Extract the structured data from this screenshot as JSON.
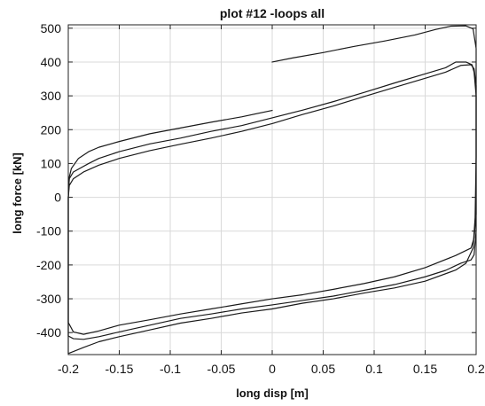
{
  "chart_data": {
    "type": "line",
    "title": "plot #12 -loops all",
    "xlabel": "long disp [m]",
    "ylabel": "long force [kN]",
    "xlim": [
      -0.2,
      0.2
    ],
    "ylim": [
      -465,
      510
    ],
    "x_ticks": [
      -0.2,
      -0.15,
      -0.1,
      -0.05,
      0,
      0.05,
      0.1,
      0.15,
      0.2
    ],
    "x_tick_labels": [
      "-0.2",
      "-0.15",
      "-0.1",
      "-0.05",
      "0",
      "0.05",
      "0.1",
      "0.15",
      "0.2"
    ],
    "y_ticks": [
      -400,
      -300,
      -200,
      -100,
      0,
      100,
      200,
      300,
      400,
      500
    ],
    "y_tick_labels": [
      "-400",
      "-300",
      "-200",
      "-100",
      "0",
      "100",
      "200",
      "300",
      "400",
      "500"
    ],
    "grid": true,
    "line_color": "#1a1a1a",
    "series": [
      {
        "points": [
          [
            0,
            400
          ],
          [
            0.02,
            412
          ],
          [
            0.05,
            428
          ],
          [
            0.08,
            446
          ],
          [
            0.11,
            462
          ],
          [
            0.14,
            480
          ],
          [
            0.16,
            496
          ],
          [
            0.175,
            506
          ],
          [
            0.19,
            507
          ],
          [
            0.197,
            498
          ],
          [
            0.2,
            440
          ],
          [
            0.2,
            120
          ],
          [
            0.199,
            -60
          ],
          [
            0.197,
            -150
          ],
          [
            0.19,
            -195
          ],
          [
            0.18,
            -215
          ],
          [
            0.15,
            -248
          ],
          [
            0.12,
            -268
          ],
          [
            0.09,
            -283
          ],
          [
            0.06,
            -300
          ],
          [
            0.03,
            -313
          ],
          [
            0,
            -330
          ],
          [
            -0.03,
            -342
          ],
          [
            -0.06,
            -358
          ],
          [
            -0.09,
            -372
          ],
          [
            -0.12,
            -392
          ],
          [
            -0.15,
            -412
          ],
          [
            -0.17,
            -427
          ],
          [
            -0.185,
            -444
          ],
          [
            -0.195,
            -456
          ],
          [
            -0.2,
            -462
          ],
          [
            -0.2,
            -440
          ],
          [
            -0.2,
            -200
          ],
          [
            -0.2,
            0
          ],
          [
            -0.199,
            60
          ],
          [
            -0.197,
            85
          ],
          [
            -0.19,
            115
          ],
          [
            -0.18,
            135
          ],
          [
            -0.17,
            148
          ],
          [
            -0.15,
            165
          ],
          [
            -0.12,
            188
          ],
          [
            -0.09,
            205
          ],
          [
            -0.06,
            222
          ],
          [
            -0.03,
            238
          ],
          [
            0,
            257
          ]
        ]
      },
      {
        "points": [
          [
            -0.2,
            0
          ],
          [
            -0.199,
            55
          ],
          [
            -0.195,
            75
          ],
          [
            -0.18,
            100
          ],
          [
            -0.17,
            115
          ],
          [
            -0.15,
            135
          ],
          [
            -0.12,
            158
          ],
          [
            -0.09,
            175
          ],
          [
            -0.06,
            195
          ],
          [
            -0.03,
            212
          ],
          [
            0,
            235
          ],
          [
            0.03,
            258
          ],
          [
            0.06,
            283
          ],
          [
            0.09,
            310
          ],
          [
            0.12,
            338
          ],
          [
            0.15,
            365
          ],
          [
            0.17,
            383
          ],
          [
            0.18,
            400
          ],
          [
            0.19,
            400
          ],
          [
            0.196,
            392
          ],
          [
            0.198,
            370
          ],
          [
            0.2,
            300
          ],
          [
            0.2,
            0
          ],
          [
            0.2,
            -100
          ],
          [
            0.198,
            -170
          ],
          [
            0.195,
            -185
          ],
          [
            0.185,
            -195
          ],
          [
            0.17,
            -216
          ],
          [
            0.15,
            -235
          ],
          [
            0.12,
            -258
          ],
          [
            0.09,
            -275
          ],
          [
            0.06,
            -292
          ],
          [
            0.03,
            -305
          ],
          [
            0,
            -318
          ],
          [
            -0.03,
            -330
          ],
          [
            -0.06,
            -345
          ],
          [
            -0.09,
            -358
          ],
          [
            -0.12,
            -378
          ],
          [
            -0.15,
            -398
          ],
          [
            -0.17,
            -412
          ],
          [
            -0.185,
            -420
          ],
          [
            -0.195,
            -418
          ],
          [
            -0.2,
            -410
          ],
          [
            -0.2,
            -300
          ],
          [
            -0.2,
            0
          ]
        ]
      },
      {
        "points": [
          [
            -0.2,
            0
          ],
          [
            -0.199,
            35
          ],
          [
            -0.195,
            55
          ],
          [
            -0.185,
            75
          ],
          [
            -0.17,
            95
          ],
          [
            -0.15,
            115
          ],
          [
            -0.12,
            138
          ],
          [
            -0.09,
            157
          ],
          [
            -0.06,
            175
          ],
          [
            -0.03,
            195
          ],
          [
            0,
            218
          ],
          [
            0.03,
            245
          ],
          [
            0.06,
            270
          ],
          [
            0.09,
            298
          ],
          [
            0.12,
            325
          ],
          [
            0.15,
            352
          ],
          [
            0.17,
            370
          ],
          [
            0.185,
            390
          ],
          [
            0.195,
            392
          ],
          [
            0.198,
            380
          ],
          [
            0.2,
            330
          ],
          [
            0.2,
            0
          ],
          [
            0.2,
            -50
          ],
          [
            0.198,
            -120
          ],
          [
            0.195,
            -150
          ],
          [
            0.18,
            -172
          ],
          [
            0.15,
            -208
          ],
          [
            0.12,
            -235
          ],
          [
            0.09,
            -255
          ],
          [
            0.06,
            -272
          ],
          [
            0.03,
            -288
          ],
          [
            0,
            -300
          ],
          [
            -0.03,
            -315
          ],
          [
            -0.06,
            -330
          ],
          [
            -0.09,
            -345
          ],
          [
            -0.12,
            -362
          ],
          [
            -0.15,
            -378
          ],
          [
            -0.17,
            -395
          ],
          [
            -0.185,
            -405
          ],
          [
            -0.195,
            -398
          ],
          [
            -0.2,
            -370
          ],
          [
            -0.2,
            -200
          ],
          [
            -0.2,
            0
          ]
        ]
      }
    ]
  }
}
